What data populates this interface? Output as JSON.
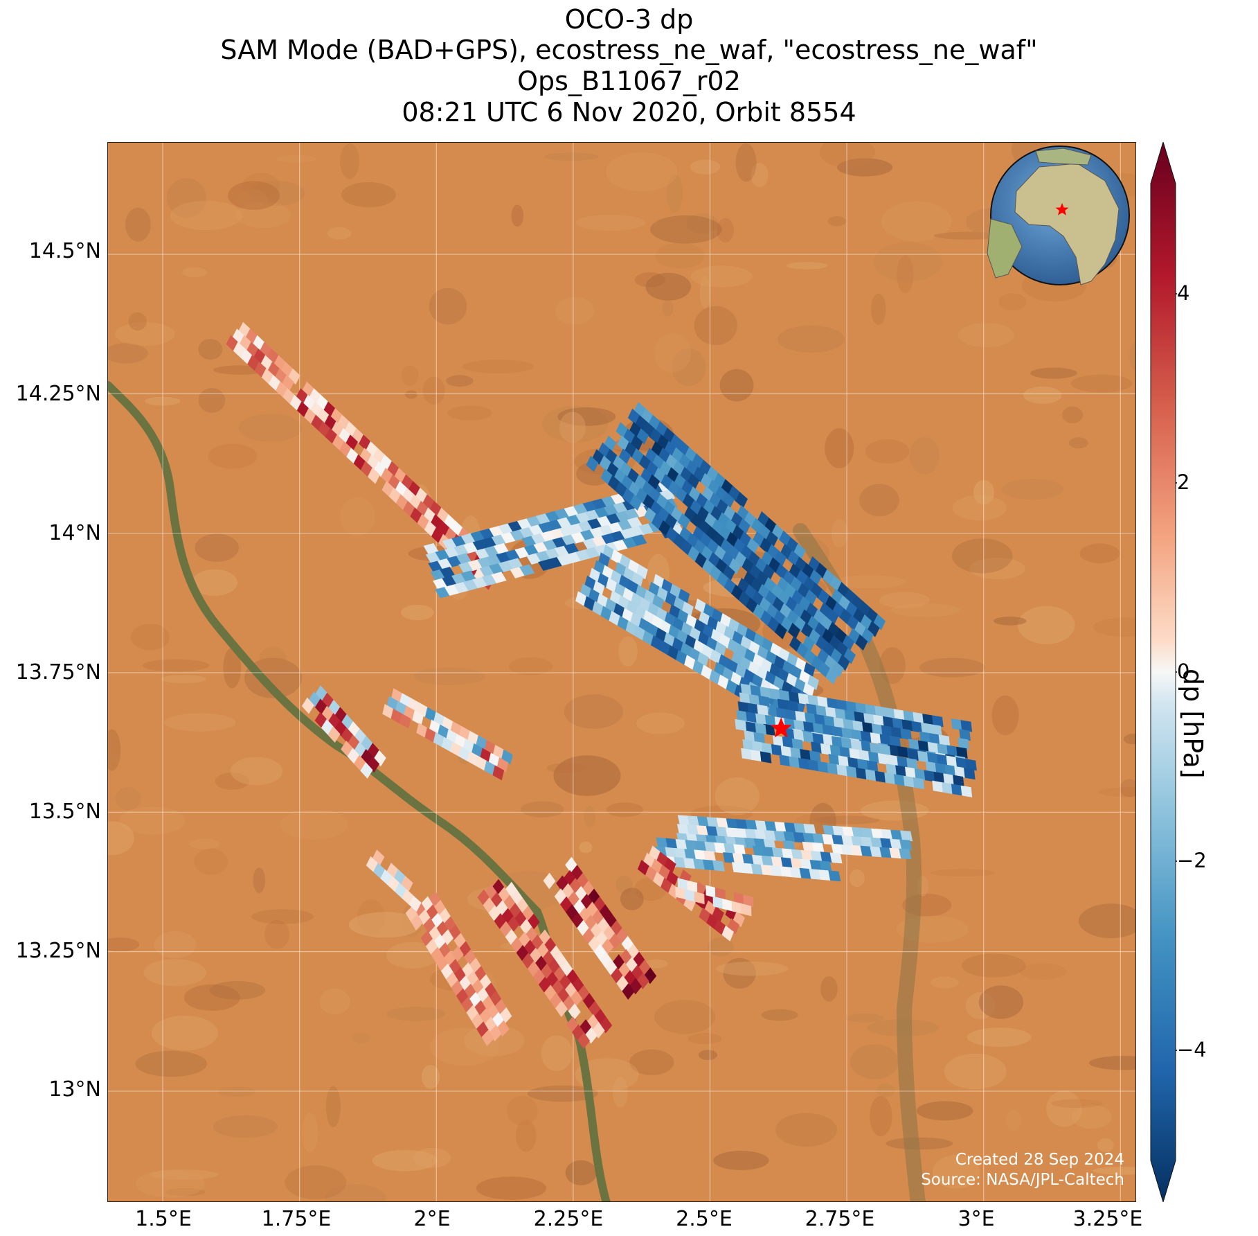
{
  "title": {
    "line1": "OCO-3 dp",
    "line2": "SAM Mode (BAD+GPS), ecostress_ne_waf, \"ecostress_ne_waf\"",
    "line3": "Ops_B11067_r02",
    "line4": "08:21 UTC 6 Nov 2020, Orbit 8554"
  },
  "map": {
    "lat_ticks": [
      "14.5°N",
      "14.25°N",
      "14°N",
      "13.75°N",
      "13.5°N",
      "13.25°N",
      "13°N"
    ],
    "lon_ticks": [
      "1.5°E",
      "1.75°E",
      "2°E",
      "2.25°E",
      "2.5°E",
      "2.75°E",
      "3°E",
      "3.25°E"
    ],
    "target_marker": "red-star",
    "credit_line1": "Created 28 Sep 2024",
    "credit_line2": "Source: NASA/JPL-Caltech",
    "inset": "globe-locator"
  },
  "colorbar": {
    "label": "dp [hPa]",
    "ticks": [
      "4",
      "2",
      "0",
      "−2",
      "−4"
    ],
    "colors": {
      "max": "#67001f",
      "mid": "#f7f7f7",
      "min": "#053061"
    }
  },
  "chart_data": {
    "type": "scatter",
    "title": "OCO-3 dp",
    "xlabel": "",
    "ylabel": "",
    "xlim": [
      1.4,
      3.28
    ],
    "ylim": [
      12.8,
      14.7
    ],
    "colorbar_range": [
      -5,
      5
    ],
    "target": {
      "lon": 2.63,
      "lat": 13.65
    },
    "swaths": [
      {
        "lon0": 1.63,
        "lat0": 14.36,
        "lon1": 2.12,
        "lat1": 13.91,
        "width": 0.055,
        "dp_min": 0.0,
        "dp_max": 4.2
      },
      {
        "lon0": 1.99,
        "lat0": 13.93,
        "lon1": 2.45,
        "lat1": 14.05,
        "width": 0.11,
        "dp_min": -4.5,
        "dp_max": 0.5
      },
      {
        "lon0": 2.32,
        "lat0": 14.18,
        "lon1": 2.78,
        "lat1": 13.78,
        "width": 0.15,
        "dp_min": -5.0,
        "dp_max": -2.5
      },
      {
        "lon0": 2.28,
        "lat0": 13.93,
        "lon1": 2.68,
        "lat1": 13.7,
        "width": 0.13,
        "dp_min": -4.5,
        "dp_max": 0.0
      },
      {
        "lon0": 2.55,
        "lat0": 13.69,
        "lon1": 2.98,
        "lat1": 13.62,
        "width": 0.09,
        "dp_min": -5.0,
        "dp_max": -0.5
      },
      {
        "lon0": 2.56,
        "lat0": 13.63,
        "lon1": 2.98,
        "lat1": 13.56,
        "width": 0.08,
        "dp_min": -4.8,
        "dp_max": -0.5
      },
      {
        "lon0": 2.44,
        "lat0": 13.47,
        "lon1": 2.88,
        "lat1": 13.44,
        "width": 0.05,
        "dp_min": -4.0,
        "dp_max": 0.5
      },
      {
        "lon0": 2.4,
        "lat0": 13.43,
        "lon1": 2.75,
        "lat1": 13.4,
        "width": 0.06,
        "dp_min": -4.0,
        "dp_max": 1.0
      },
      {
        "lon0": 2.38,
        "lat0": 13.42,
        "lon1": 2.55,
        "lat1": 13.29,
        "width": 0.05,
        "dp_min": 0.5,
        "dp_max": 4.5
      },
      {
        "lon0": 2.42,
        "lat0": 13.37,
        "lon1": 2.58,
        "lat1": 13.33,
        "width": 0.04,
        "dp_min": -1.0,
        "dp_max": 3.0
      },
      {
        "lon0": 1.97,
        "lat0": 13.34,
        "lon1": 2.12,
        "lat1": 13.1,
        "width": 0.07,
        "dp_min": 0.0,
        "dp_max": 3.5
      },
      {
        "lon0": 1.88,
        "lat0": 13.42,
        "lon1": 1.98,
        "lat1": 13.33,
        "width": 0.04,
        "dp_min": -2.0,
        "dp_max": 2.0
      },
      {
        "lon0": 2.1,
        "lat0": 13.37,
        "lon1": 2.3,
        "lat1": 13.09,
        "width": 0.08,
        "dp_min": 0.5,
        "dp_max": 4.5
      },
      {
        "lon0": 2.22,
        "lat0": 13.4,
        "lon1": 2.38,
        "lat1": 13.18,
        "width": 0.08,
        "dp_min": 0.0,
        "dp_max": 5.0
      },
      {
        "lon0": 1.77,
        "lat0": 13.71,
        "lon1": 1.89,
        "lat1": 13.58,
        "width": 0.05,
        "dp_min": -2.5,
        "dp_max": 5.0
      },
      {
        "lon0": 1.91,
        "lat0": 13.7,
        "lon1": 2.13,
        "lat1": 13.58,
        "width": 0.06,
        "dp_min": -3.0,
        "dp_max": 5.0
      }
    ]
  }
}
